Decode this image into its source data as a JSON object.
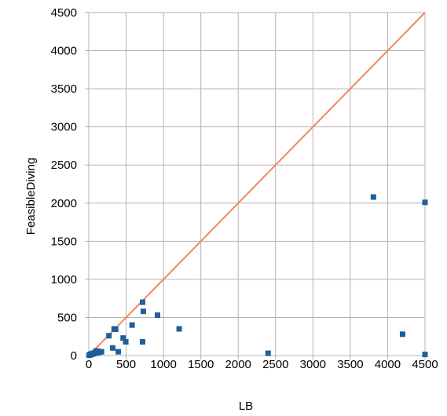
{
  "chart_data": {
    "type": "scatter",
    "xlabel": "LB",
    "ylabel": "FeasibleDiving",
    "xlim": [
      0,
      4500
    ],
    "ylim": [
      0,
      4500
    ],
    "x_ticks": [
      "0",
      "500",
      "1000",
      "1500",
      "2000",
      "2500",
      "3000",
      "3500",
      "4000",
      "4500"
    ],
    "y_ticks": [
      "0",
      "500",
      "1000",
      "1500",
      "2000",
      "2500",
      "3000",
      "3500",
      "4000",
      "4500"
    ],
    "grid": true,
    "colors": {
      "points": "#1f5f9a",
      "reference_line": "#f5845f",
      "grid": "#b3b3b3"
    },
    "series": [
      {
        "values": [
          {
            "x": 5,
            "y": 5
          },
          {
            "x": 15,
            "y": 10
          },
          {
            "x": 25,
            "y": 20
          },
          {
            "x": 40,
            "y": 15
          },
          {
            "x": 55,
            "y": 30
          },
          {
            "x": 70,
            "y": 25
          },
          {
            "x": 85,
            "y": 40
          },
          {
            "x": 100,
            "y": 60
          },
          {
            "x": 115,
            "y": 35
          },
          {
            "x": 130,
            "y": 55
          },
          {
            "x": 150,
            "y": 45
          },
          {
            "x": 170,
            "y": 50
          },
          {
            "x": 270,
            "y": 260
          },
          {
            "x": 320,
            "y": 100
          },
          {
            "x": 340,
            "y": 350
          },
          {
            "x": 360,
            "y": 345
          },
          {
            "x": 395,
            "y": 50
          },
          {
            "x": 460,
            "y": 230
          },
          {
            "x": 495,
            "y": 180
          },
          {
            "x": 580,
            "y": 400
          },
          {
            "x": 720,
            "y": 180
          },
          {
            "x": 720,
            "y": 700
          },
          {
            "x": 730,
            "y": 580
          },
          {
            "x": 920,
            "y": 530
          },
          {
            "x": 1210,
            "y": 350
          },
          {
            "x": 2400,
            "y": 30
          },
          {
            "x": 3810,
            "y": 2080
          },
          {
            "x": 4200,
            "y": 280
          },
          {
            "x": 4500,
            "y": 15
          },
          {
            "x": 4500,
            "y": 2010
          }
        ]
      }
    ],
    "reference_line": {
      "x": [
        0,
        4500
      ],
      "y": [
        0,
        4500
      ]
    }
  }
}
